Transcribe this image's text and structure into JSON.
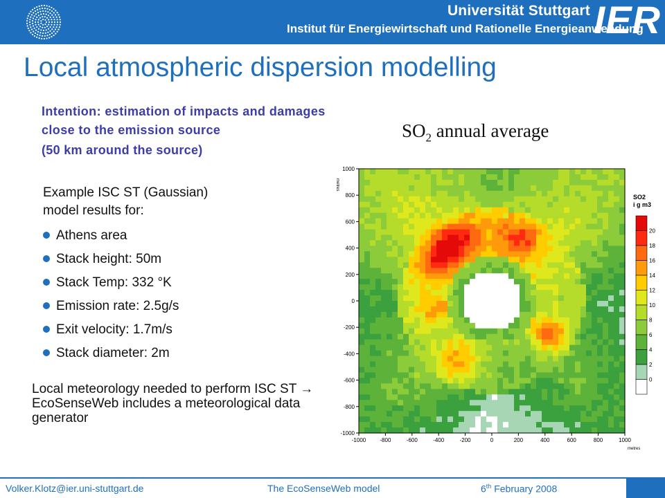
{
  "header": {
    "university": "Universität Stuttgart",
    "institute": "Institut für Energiewirtschaft und Rationelle Energieanwendung",
    "logo_text": "IER",
    "color": "#1f6fbf"
  },
  "title": "Local atmospheric dispersion modelling",
  "intention": {
    "text": "Intention: estimation of impacts and damages close to the emission source",
    "radius": "(50 km around the source)"
  },
  "example": {
    "line1": "Example ISC ST (Gaussian)",
    "line2": "model results for:"
  },
  "bullets": [
    "Athens area",
    "Stack height: 50m",
    "Stack Temp: 332 °K",
    "Emission rate: 2.5g/s",
    "Exit velocity: 1.7m/s",
    "Stack diameter: 2m"
  ],
  "meteorology": "Local meteorology needed to perform ISC ST → EcoSenseWeb includes a meteorological data generator",
  "chart_title": {
    "main": "SO",
    "sub": "2",
    "rest": " annual average"
  },
  "chart_data": {
    "type": "heatmap",
    "xlabel": "metres",
    "ylabel": "metres",
    "x_ticks": [
      -1000,
      -800,
      -600,
      -400,
      -200,
      0,
      200,
      400,
      600,
      800,
      1000
    ],
    "y_ticks": [
      -1000,
      -800,
      -600,
      -400,
      -200,
      0,
      200,
      400,
      600,
      800,
      1000
    ],
    "xlim": [
      -1000,
      1000
    ],
    "ylim": [
      -1000,
      1000
    ],
    "legend_title_line1": "SO2",
    "legend_title_line2": "i g m3",
    "legend_levels": [
      0,
      2,
      4,
      6,
      8,
      10,
      12,
      14,
      16,
      18,
      20
    ],
    "legend_colors": [
      "#ffffff",
      "#a7d6b4",
      "#3aa13e",
      "#5db33a",
      "#8ccc3a",
      "#b6dc2b",
      "#dfe81c",
      "#ffcc00",
      "#ff9a0b",
      "#ff6a10",
      "#ff2a10",
      "#e50a0a"
    ]
  },
  "footer": {
    "email": "Volker.Klotz@ier.uni-stuttgart.de",
    "model": "The EcoSenseWeb model",
    "date_day": "6",
    "date_suffix": "th",
    "date_rest": " February 2008"
  }
}
